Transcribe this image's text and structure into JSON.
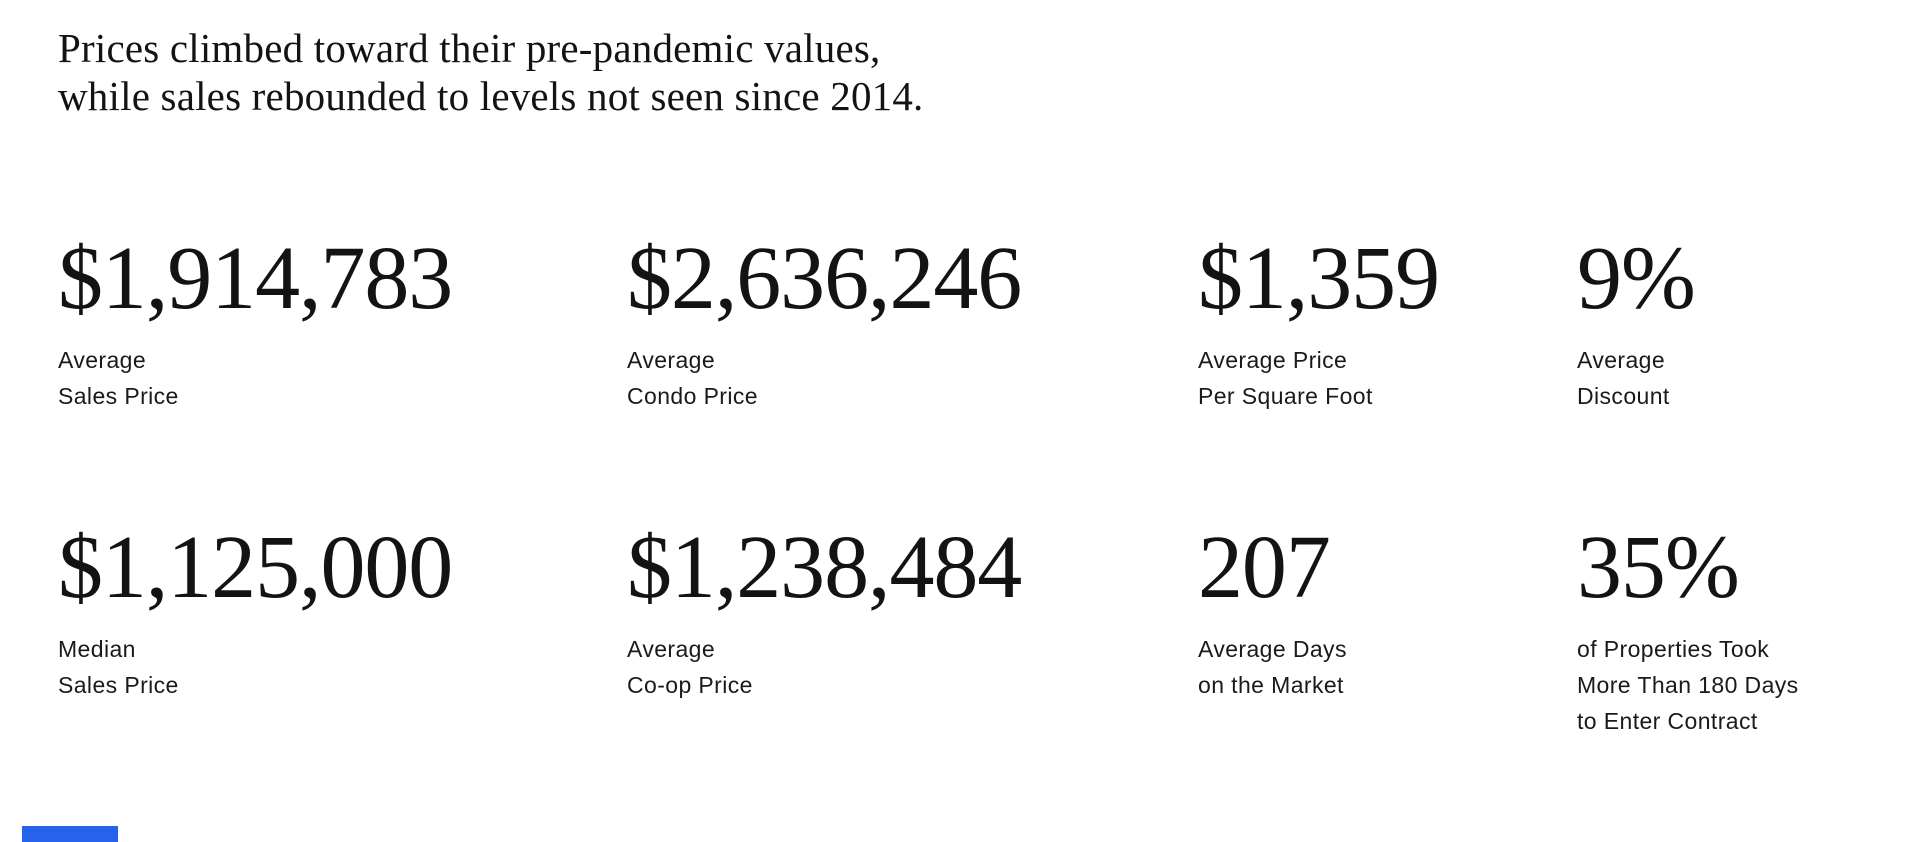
{
  "page": {
    "headline_line1": "Prices climbed toward their pre-pandemic values,",
    "headline_line2": "while sales rebounded to levels not seen since 2014."
  },
  "stats": [
    {
      "value": "$1,914,783",
      "label": "Average\nSales Price"
    },
    {
      "value": "$2,636,246",
      "label": "Average\nCondo Price"
    },
    {
      "value": "$1,359",
      "label": "Average Price\nPer Square Foot"
    },
    {
      "value": "9%",
      "label": "Average\nDiscount"
    },
    {
      "value": "$1,125,000",
      "label": "Median\nSales Price"
    },
    {
      "value": "$1,238,484",
      "label": "Average\nCo-op Price"
    },
    {
      "value": "207",
      "label": "Average Days\non the Market"
    },
    {
      "value": "35%",
      "label": "of Properties Took\nMore Than 180 Days\nto Enter Contract"
    }
  ],
  "colors": {
    "text": "#131313",
    "accent": "#2563EB",
    "background": "#FFFFFF"
  }
}
